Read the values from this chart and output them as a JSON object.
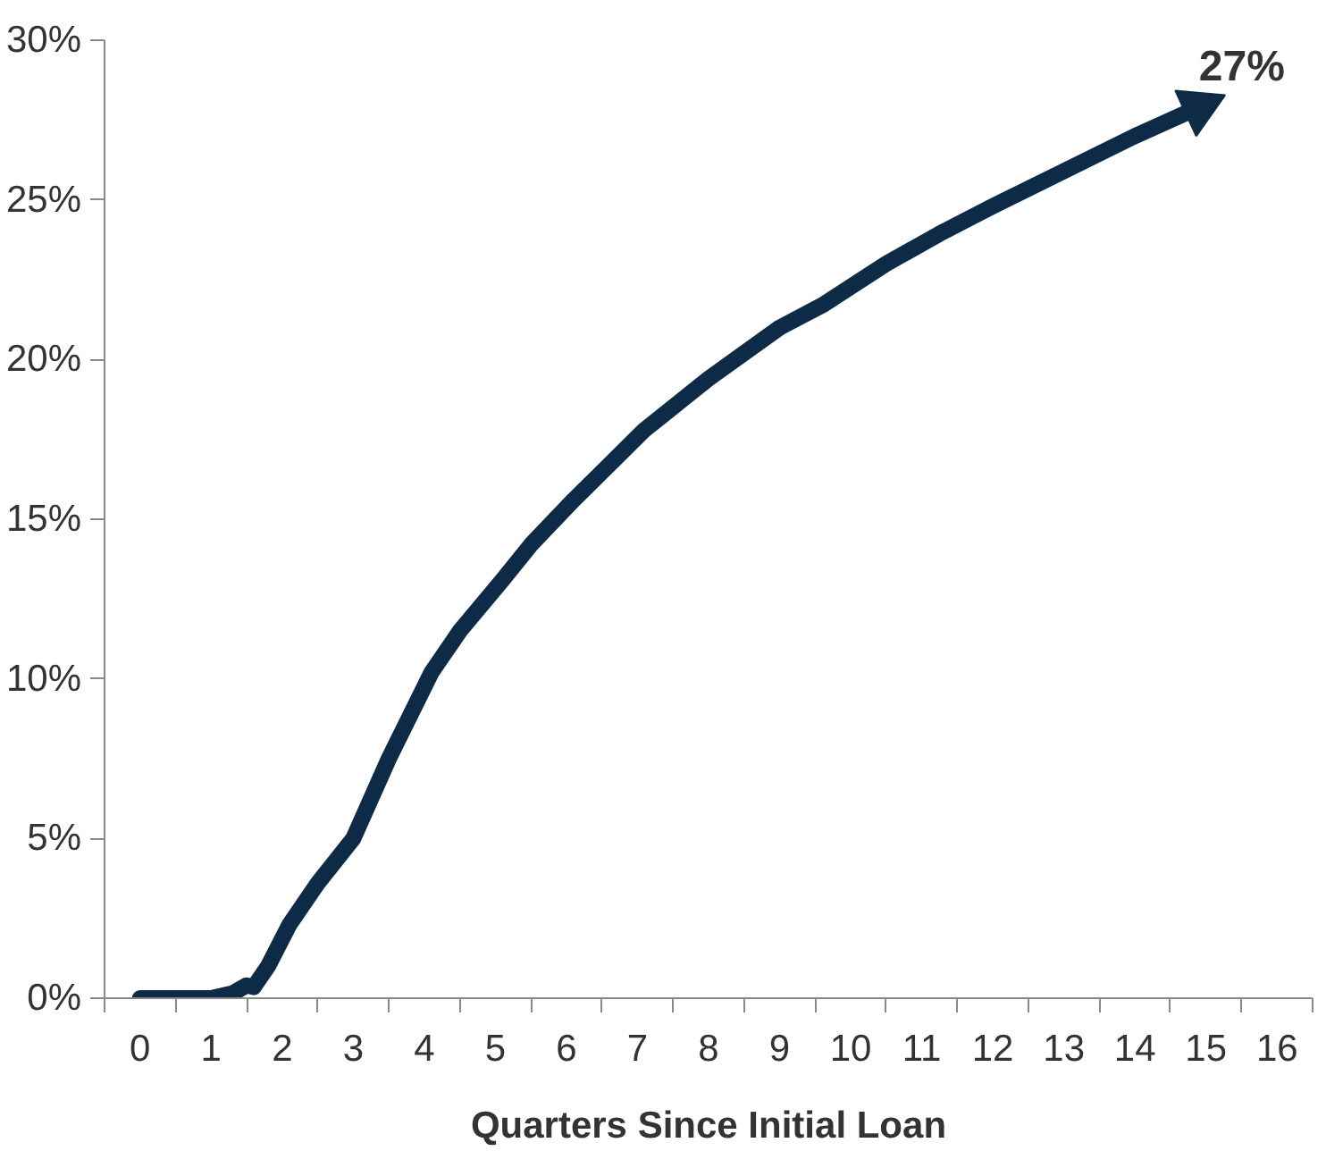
{
  "chart_data": {
    "type": "line",
    "xlabel": "Quarters Since Initial Loan",
    "x": [
      0,
      0.3,
      0.6,
      1,
      1.3,
      1.5,
      1.6,
      1.8,
      2.1,
      2.5,
      3,
      3.5,
      4.1,
      4.5,
      5.1,
      5.5,
      6.1,
      7.1,
      8,
      9,
      9.6,
      10.5,
      11.3,
      12,
      13,
      14,
      14.9
    ],
    "series": [
      {
        "color": "#0d2a47",
        "values": [
          0,
          0,
          0,
          0,
          0.15,
          0.4,
          0.35,
          1.0,
          2.3,
          3.6,
          5.0,
          7.5,
          10.2,
          11.5,
          13.1,
          14.2,
          15.6,
          17.8,
          19.4,
          21.0,
          21.7,
          23.0,
          24.0,
          24.8,
          25.9,
          27.0,
          27.9
        ]
      }
    ],
    "xlim": [
      -0.5,
      16.5
    ],
    "xticks": [
      0,
      1,
      2,
      3,
      4,
      5,
      6,
      7,
      8,
      9,
      10,
      11,
      12,
      13,
      14,
      15,
      16
    ],
    "ylim": [
      0,
      30
    ],
    "yticks": [
      {
        "value": 0,
        "label": "0%"
      },
      {
        "value": 5,
        "label": "5%"
      },
      {
        "value": 10,
        "label": "10%"
      },
      {
        "value": 15,
        "label": "15%"
      },
      {
        "value": 20,
        "label": "20%"
      },
      {
        "value": 25,
        "label": "25%"
      },
      {
        "value": 30,
        "label": "30%"
      }
    ],
    "annotations": [
      {
        "text": "27%",
        "x": 14.9,
        "y": 27.9
      }
    ],
    "grid": false,
    "marker": "none",
    "line_style": "solid"
  }
}
